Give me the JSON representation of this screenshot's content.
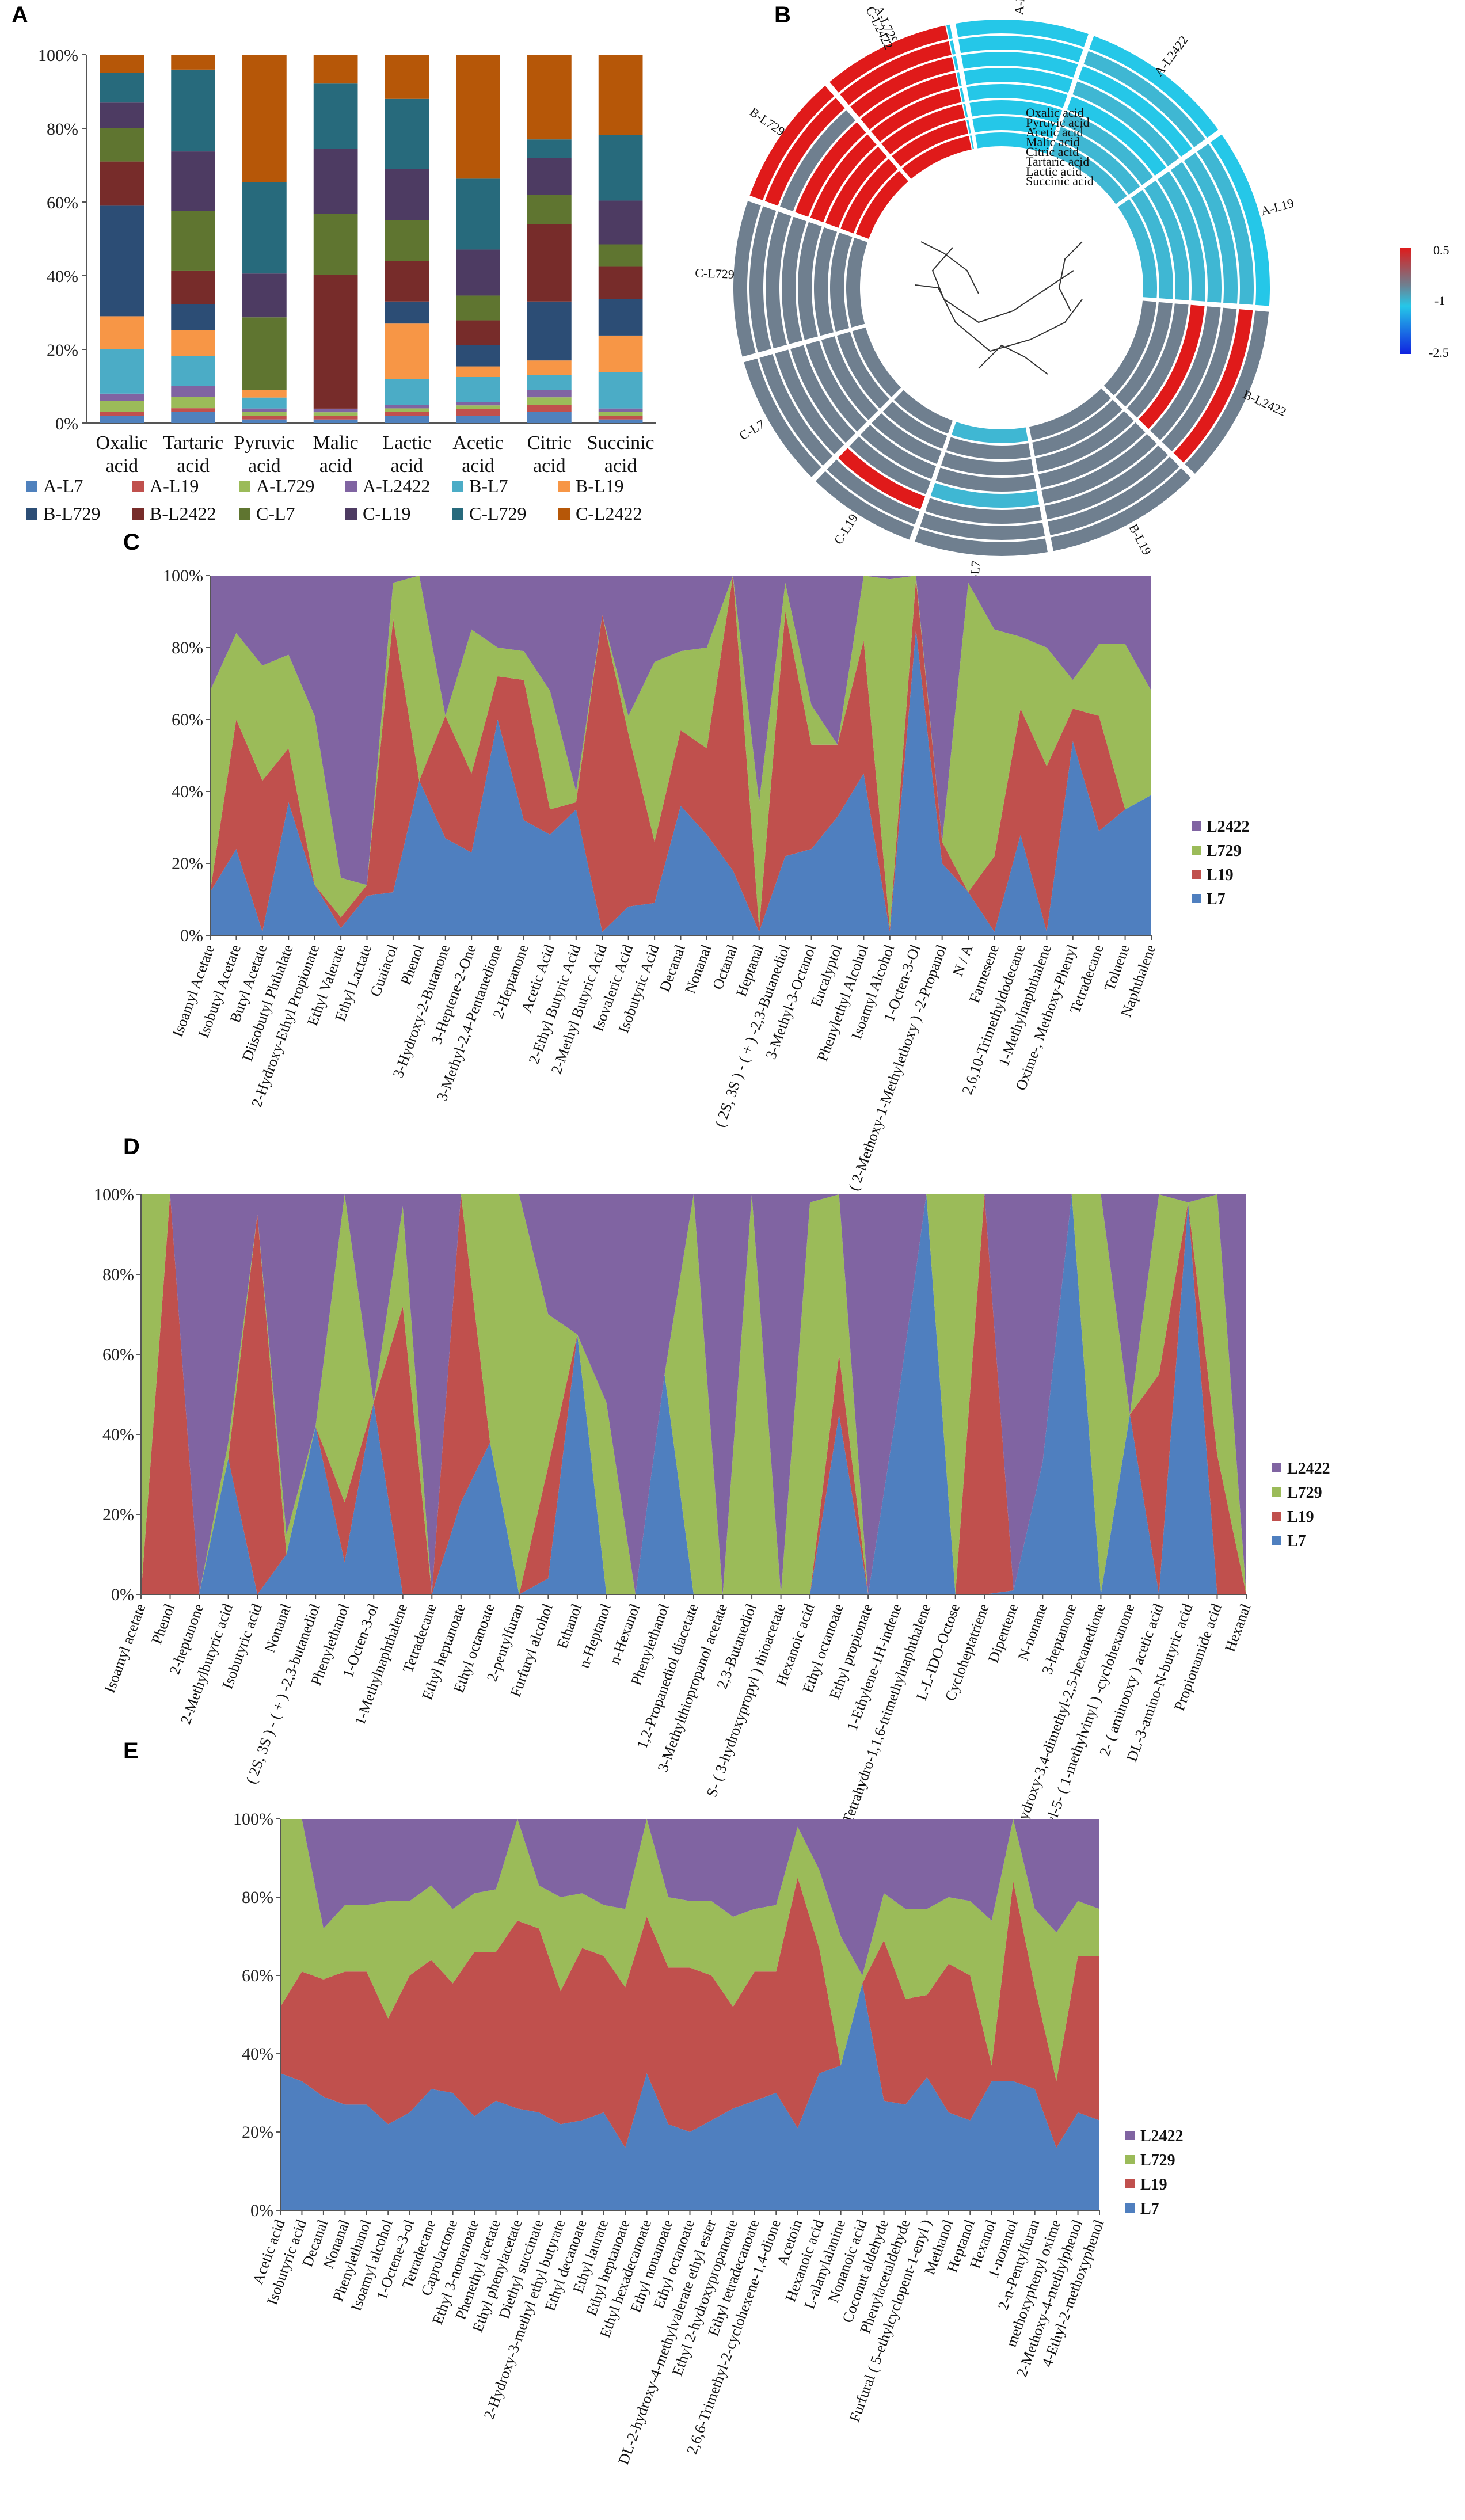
{
  "panels": {
    "A": "A",
    "B": "B",
    "C": "C",
    "D": "D",
    "E": "E"
  },
  "colors": {
    "L7": "#4f7fbf",
    "L19": "#c0504d",
    "L729": "#9bbb59",
    "L2422": "#8064a2",
    "stack": [
      "#4f81bd",
      "#c0504d",
      "#9bbb59",
      "#8064a2",
      "#4bacc6",
      "#f79646",
      "#2c4d75",
      "#772c2a",
      "#5f7530",
      "#4d3b62",
      "#276a7c",
      "#b65708"
    ]
  },
  "chart_data": [
    {
      "id": "A",
      "type": "bar",
      "stacked": true,
      "percent": true,
      "categories": [
        "Oxalic acid",
        "Tartaric acid",
        "Pyruvic acid",
        "Malic acid",
        "Lactic acid",
        "Acetic acid",
        "Citric acid",
        "Succinic acid"
      ],
      "yticks": [
        "0%",
        "20%",
        "40%",
        "60%",
        "80%",
        "100%"
      ],
      "series": [
        {
          "name": "A-L7",
          "values": [
            2,
            3,
            1,
            1,
            2,
            2,
            3,
            1
          ]
        },
        {
          "name": "A-L19",
          "values": [
            1,
            1,
            1,
            1,
            1,
            2,
            2,
            1
          ]
        },
        {
          "name": "A-L729",
          "values": [
            3,
            3,
            1,
            1,
            1,
            1,
            2,
            1
          ]
        },
        {
          "name": "A-L2422",
          "values": [
            2,
            3,
            1,
            1,
            1,
            1,
            2,
            1
          ]
        },
        {
          "name": "B-L7",
          "values": [
            12,
            8,
            3,
            0,
            7,
            7,
            4,
            10
          ]
        },
        {
          "name": "B-L19",
          "values": [
            9,
            7,
            2,
            0,
            15,
            3,
            4,
            10
          ]
        },
        {
          "name": "B-L729",
          "values": [
            30,
            7,
            0,
            0,
            6,
            6,
            16,
            10
          ]
        },
        {
          "name": "B-L2422",
          "values": [
            12,
            9,
            0,
            37,
            11,
            7,
            21,
            9
          ]
        },
        {
          "name": "C-L7",
          "values": [
            9,
            16,
            20,
            17,
            11,
            7,
            8,
            6
          ]
        },
        {
          "name": "C-L19",
          "values": [
            7,
            16,
            12,
            18,
            14,
            13,
            10,
            12
          ]
        },
        {
          "name": "C-L729",
          "values": [
            8,
            22,
            25,
            18,
            19,
            20,
            5,
            18
          ]
        },
        {
          "name": "C-L2422",
          "values": [
            5,
            4,
            35,
            8,
            12,
            35,
            23,
            22
          ]
        }
      ],
      "legend": [
        "A-L7",
        "A-L19",
        "A-L729",
        "A-L2422",
        "B-L7",
        "B-L19",
        "B-L729",
        "B-L2422",
        "C-L7",
        "C-L19",
        "C-L729",
        "C-L2422"
      ]
    },
    {
      "id": "B",
      "type": "heatmap",
      "layout": "circular",
      "rows": [
        "Oxalic acid",
        "Pyruvic acid",
        "Acetic acid",
        "Malic acid",
        "Citric acid",
        "Tartaric acid",
        "Lactic acid",
        "Succinic acid"
      ],
      "columns": [
        "A-L729",
        "A-L7",
        "A-L2422",
        "A-L19",
        "B-L2422",
        "B-L19",
        "B-L7",
        "C-L19",
        "C-L7",
        "C-L729",
        "B-L729",
        "C-L2422"
      ],
      "scale": {
        "max_label": "0.5",
        "mid_label": "-1",
        "min_label": "-2.5",
        "max": 0.5,
        "min": -2.5
      },
      "values": [
        [
          -1.2,
          -1.3,
          -1.1,
          -1.0,
          -0.6,
          -0.6,
          -0.8,
          -0.5,
          -0.4,
          -0.2,
          0.2,
          0.4
        ],
        [
          -1.2,
          -1.2,
          -1.1,
          -1.0,
          -0.5,
          -0.6,
          -0.6,
          -0.4,
          -0.3,
          -0.2,
          0.3,
          0.3
        ],
        [
          -1.3,
          -1.2,
          -1.1,
          -1.0,
          -0.4,
          -0.5,
          -0.6,
          -0.5,
          -0.2,
          -0.3,
          0.2,
          0.4
        ],
        [
          -1.3,
          -1.3,
          -1.2,
          -1.1,
          0.3,
          -0.5,
          -0.6,
          -0.3,
          -0.4,
          -0.2,
          0.3,
          0.2
        ],
        [
          -1.2,
          -1.2,
          -1.1,
          -1.0,
          -0.5,
          -0.6,
          -0.7,
          -0.4,
          -0.3,
          -0.1,
          0.3,
          0.4
        ],
        [
          -1.4,
          -1.3,
          -1.2,
          -1.1,
          -0.6,
          -0.5,
          -0.6,
          0.2,
          -0.3,
          -0.2,
          -0.3,
          0.3
        ],
        [
          -1.3,
          -1.3,
          -1.1,
          -1.0,
          0.4,
          -0.4,
          -0.5,
          -0.4,
          -0.3,
          -0.1,
          0.2,
          0.4
        ],
        [
          -1.5,
          -1.4,
          -1.3,
          -1.2,
          -0.6,
          -0.5,
          -0.6,
          -0.4,
          -0.3,
          -0.2,
          0.2,
          0.4
        ]
      ]
    },
    {
      "id": "C",
      "type": "area",
      "stacked": true,
      "percent": true,
      "yticks": [
        "0%",
        "20%",
        "40%",
        "60%",
        "80%",
        "100%"
      ],
      "categories": [
        "Isoamyl Acetate",
        "Isobutyl Acetate",
        "Butyl Acetate",
        "Diisobutyl Phthalate",
        "2-Hydroxy-Ethyl Propionate",
        "Ethyl Valerate",
        "Ethyl Lactate",
        "Guaiacol",
        "Phenol",
        "3-Hydroxy-2-Butanone",
        "3-Heptene-2-One",
        "3-Methyl-2,4-Pentanedione",
        "2-Heptanone",
        "Acetic Acid",
        "2-Ethyl Butyric Acid",
        "2-Methyl Butyric Acid",
        "Isovaleric Acid",
        "Isobutyric Acid",
        "Decanal",
        "Nonanal",
        "Octanal",
        "Heptanal",
        "( 2S, 3S ) - ( + ) -2,3-Butanediol",
        "3-Methyl-3-Octanol",
        "Eucalyptol",
        "Phenylethyl Alcohol",
        "Isoamyl Alcohol",
        "1-Octen-3-Ol",
        "1- ( 2-Methoxy-1-Methylethoxy ) -2-Propanol",
        "N / A",
        "Farnesene",
        "2,6,10-Trimethyldodecane",
        "1-Methylnaphthalene",
        "Oxime-, Methoxy-Phenyl",
        "Tetradecane",
        "Toluene",
        "Naphthalene"
      ],
      "series": [
        {
          "name": "L7",
          "values": [
            12,
            24,
            1,
            37,
            14,
            2,
            11,
            12,
            43,
            27,
            23,
            60,
            32,
            28,
            35,
            1,
            8,
            9,
            36,
            28,
            18,
            1,
            22,
            24,
            33,
            45,
            1,
            85,
            20,
            12,
            1,
            28,
            1,
            54,
            29,
            35,
            39
          ]
        },
        {
          "name": "L19",
          "values": [
            0,
            36,
            42,
            15,
            0,
            3,
            3,
            76,
            0,
            34,
            22,
            12,
            39,
            7,
            2,
            88,
            48,
            17,
            21,
            24,
            82,
            1,
            68,
            29,
            20,
            37,
            1,
            14,
            6,
            0,
            21,
            35,
            46,
            9,
            32,
            0,
            0
          ]
        },
        {
          "name": "L729",
          "values": [
            56,
            24,
            32,
            26,
            47,
            11,
            0,
            10,
            57,
            0,
            40,
            8,
            8,
            33,
            3,
            0,
            5,
            50,
            22,
            28,
            0,
            35,
            8,
            11,
            0,
            18,
            97,
            1,
            0,
            86,
            63,
            20,
            33,
            8,
            20,
            46,
            29
          ]
        },
        {
          "name": "L2422",
          "values": [
            32,
            16,
            25,
            22,
            39,
            84,
            86,
            2,
            0,
            39,
            15,
            20,
            21,
            32,
            60,
            11,
            39,
            24,
            21,
            20,
            0,
            63,
            2,
            36,
            47,
            0,
            1,
            0,
            74,
            2,
            15,
            17,
            20,
            29,
            19,
            19,
            32
          ]
        }
      ],
      "legend": [
        "L2422",
        "L729",
        "L19",
        "L7"
      ]
    },
    {
      "id": "D",
      "type": "area",
      "stacked": true,
      "percent": true,
      "yticks": [
        "0%",
        "20%",
        "40%",
        "60%",
        "80%",
        "100%"
      ],
      "categories": [
        "Isoamyl acetate",
        "Phenol",
        "2-heptanone",
        "2-Methylbutyric acid",
        "Isobutyric acid",
        "Nonanal",
        "( 2S, 3S ) - ( + ) -2,3-butanediol",
        "Phenylethanol",
        "1-Octen-3-ol",
        "1-Methylnaphthalene",
        "Tetradecane",
        "Ethyl heptanoate",
        "Ethyl octanoate",
        "2-pentylfuran",
        "Furfuryl alcohol",
        "Ethanol",
        "n-Heptanol",
        "n-Hexanol",
        "Phenylethanol",
        "1,2-Propanediol diacetate",
        "3-Methylthiopropanol acetate",
        "2,3-Butanediol",
        "S- ( 3-hydroxypropyl ) thioacetate",
        "Hexanoic acid",
        "Ethyl octanoate",
        "Ethyl propionate",
        "1-Ethylene-1H-indene",
        "1,2,3,4-Tetrahydro-1,1,6-trimethylnaphthalene",
        "L-L-IDO-Octose",
        "Cycloheptatriene",
        "Dipentene",
        "N-nonane",
        "3-heptanone",
        "3,4-Dihydroxy-3,4-dimethyl-2,5-hexanedione",
        "2-Methyl-5- ( 1-methylvinyl ) -cyclohexanone",
        "2- ( aminooxy ) acetic acid",
        "DL-3-amino-N-butyric acid",
        "Propionamide acid",
        "Hexanal"
      ],
      "series": [
        {
          "name": "L7",
          "values": [
            0,
            0,
            0,
            34,
            0,
            10,
            42,
            8,
            48,
            0,
            0,
            30,
            38,
            0,
            4,
            65,
            0,
            0,
            55,
            0,
            0,
            0,
            0,
            0,
            45,
            0,
            47,
            100,
            0,
            0,
            1,
            33,
            100,
            0,
            45,
            0,
            98,
            0,
            0
          ]
        },
        {
          "name": "L19",
          "values": [
            0,
            100,
            0,
            0,
            95,
            0,
            0,
            15,
            0,
            72,
            0,
            100,
            0,
            0,
            28,
            0,
            0,
            0,
            0,
            0,
            0,
            0,
            0,
            0,
            15,
            0,
            0,
            0,
            0,
            100,
            0,
            0,
            0,
            0,
            0,
            55,
            0,
            35,
            0
          ]
        },
        {
          "name": "L729",
          "values": [
            100,
            0,
            0,
            4,
            0,
            5,
            0,
            77,
            0,
            25,
            0,
            0,
            62,
            100,
            38,
            0,
            48,
            0,
            0,
            100,
            0,
            100,
            0,
            98,
            40,
            0,
            0,
            0,
            100,
            0,
            0,
            0,
            0,
            100,
            0,
            45,
            0,
            65,
            0
          ]
        },
        {
          "name": "L2422",
          "values": [
            0,
            0,
            100,
            62,
            5,
            85,
            58,
            0,
            52,
            3,
            100,
            0,
            0,
            0,
            30,
            35,
            52,
            100,
            45,
            0,
            100,
            0,
            100,
            2,
            0,
            100,
            53,
            0,
            0,
            0,
            99,
            67,
            0,
            0,
            55,
            0,
            2,
            0,
            100
          ]
        }
      ],
      "legend": [
        "L2422",
        "L729",
        "L19",
        "L7"
      ]
    },
    {
      "id": "E",
      "type": "area",
      "stacked": true,
      "percent": true,
      "yticks": [
        "0%",
        "20%",
        "40%",
        "60%",
        "80%",
        "100%"
      ],
      "categories": [
        "Acetic acid",
        "Isobutyric acid",
        "Decanal",
        "Nonanal",
        "Phenylethanol",
        "Isoamyl alcohol",
        "1-Octene-3-ol",
        "Tetradecane",
        "Caprolactone",
        "Ethyl 3-nonenoate",
        "Phenethyl acetate",
        "Ethyl phenylacetate",
        "Diethyl succinate",
        "2-Hydroxy-3-methyl ethyl butyrate",
        "Ethyl decanoate",
        "Ethyl laurate",
        "Ethyl heptanoate",
        "Ethyl hexadecanoate",
        "Ethyl nonanoate",
        "Ethyl octanoate",
        "DL-2-hydroxy-4-methylvalerate ethyl ester",
        "Ethyl 2-hydroxypropanoate",
        "Ethyl tetradecanoate",
        "2,6,6-Trimethyl-2-cyclohexene-1,4-dione",
        "Acetoin",
        "Hexanoic acid",
        "L-alanylalanine",
        "Nonanoic acid",
        "Coconut aldehyde",
        "Phenylacetaldehyde",
        "Furfural ( 5-ethylcyclopent-1-enyl )",
        "Methanol",
        "Heptanol",
        "Hexanol",
        "1-nonanol",
        "2-n-Pentylfuran",
        "methoxyphenyl oxime",
        "2-Methoxy-4-methylphenol",
        "4-Ethyl-2-methoxyphenol"
      ],
      "series": [
        {
          "name": "L7",
          "values": [
            35,
            33,
            29,
            27,
            27,
            22,
            25,
            31,
            30,
            24,
            28,
            26,
            25,
            22,
            23,
            25,
            16,
            35,
            22,
            20,
            23,
            26,
            28,
            30,
            21,
            35,
            37,
            58,
            28,
            27,
            34,
            25,
            23,
            33,
            33,
            31,
            16,
            25,
            23
          ]
        },
        {
          "name": "L19",
          "values": [
            17,
            28,
            30,
            34,
            34,
            27,
            35,
            33,
            28,
            42,
            38,
            48,
            47,
            34,
            44,
            40,
            41,
            40,
            40,
            42,
            37,
            26,
            33,
            31,
            64,
            32,
            0,
            0,
            41,
            27,
            21,
            38,
            37,
            4,
            51,
            26,
            17,
            40,
            42
          ]
        },
        {
          "name": "L729",
          "values": [
            48,
            39,
            13,
            17,
            17,
            30,
            19,
            19,
            19,
            15,
            16,
            26,
            11,
            24,
            14,
            13,
            20,
            25,
            18,
            17,
            19,
            23,
            16,
            17,
            13,
            20,
            33,
            2,
            12,
            23,
            22,
            17,
            19,
            37,
            16,
            20,
            38,
            14,
            12
          ]
        },
        {
          "name": "L2422",
          "values": [
            0,
            0,
            28,
            22,
            22,
            21,
            21,
            17,
            23,
            19,
            18,
            0,
            17,
            20,
            19,
            22,
            23,
            0,
            20,
            21,
            21,
            25,
            23,
            22,
            2,
            13,
            30,
            40,
            19,
            23,
            23,
            20,
            21,
            26,
            0,
            23,
            29,
            21,
            23
          ]
        }
      ],
      "legend": [
        "L2422",
        "L729",
        "L19",
        "L7"
      ]
    }
  ]
}
